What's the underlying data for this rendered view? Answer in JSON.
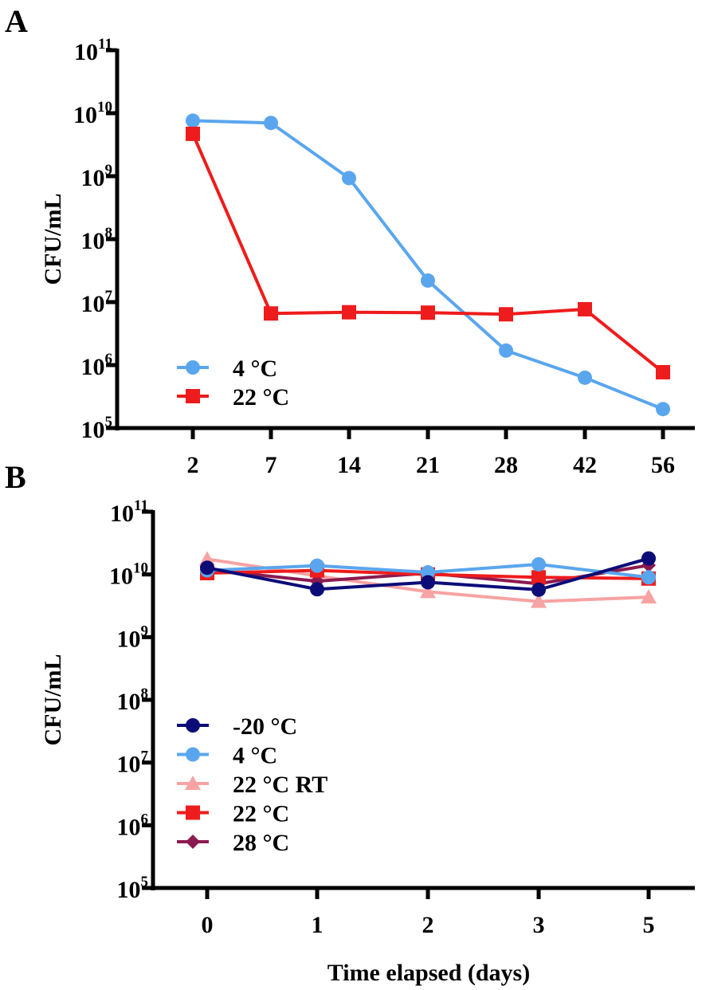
{
  "chart_data": [
    {
      "panel_label": "A",
      "type": "line",
      "ylabel": "CFU/mL",
      "xlabel": "",
      "yscale": "log",
      "ylim": [
        100000,
        100000000000
      ],
      "ytick_exponents": [
        "5",
        "6",
        "7",
        "8",
        "9",
        "10",
        "11"
      ],
      "ytick_base": "10",
      "categories": [
        "2",
        "7",
        "14",
        "21",
        "28",
        "42",
        "56"
      ],
      "legend_position": "bottom-left",
      "series": [
        {
          "name": "4 °C",
          "color": "#5aa6ee",
          "marker": "circle",
          "values": [
            7600000000.0,
            7000000000.0,
            930000000.0,
            22000000.0,
            1700000.0,
            630000.0,
            200000.0
          ]
        },
        {
          "name": "22 °C",
          "color": "#ee1c1c",
          "marker": "square",
          "values": [
            4700000000.0,
            6600000.0,
            6900000.0,
            6800000.0,
            6400000.0,
            7700000.0,
            770000.0
          ]
        }
      ]
    },
    {
      "panel_label": "B",
      "type": "line",
      "ylabel": "CFU/mL",
      "xlabel": "Time elapsed (days)",
      "yscale": "log",
      "ylim": [
        100000,
        100000000000
      ],
      "ytick_exponents": [
        "5",
        "6",
        "7",
        "8",
        "9",
        "10",
        "11"
      ],
      "ytick_base": "10",
      "categories": [
        "0",
        "1",
        "2",
        "3",
        "5"
      ],
      "legend_position": "center-left",
      "series": [
        {
          "name": "22 °C RT",
          "color": "#f7a3a3",
          "marker": "triangle",
          "values": [
            17600000000.0,
            9500000000.0,
            5300000000.0,
            3700000000.0,
            4350000000.0
          ]
        },
        {
          "name": "28 °C",
          "color": "#8b1a4f",
          "marker": "diamond",
          "values": [
            12000000000.0,
            7800000000.0,
            10500000000.0,
            7100000000.0,
            14000000000.0
          ]
        },
        {
          "name": "22 °C",
          "color": "#ee1c1c",
          "marker": "square",
          "values": [
            10500000000.0,
            11600000000.0,
            10000000000.0,
            9000000000.0,
            8600000000.0
          ]
        },
        {
          "name": "4 °C",
          "color": "#5aa6ee",
          "marker": "circle",
          "values": [
            11600000000.0,
            13800000000.0,
            10800000000.0,
            14500000000.0,
            9000000000.0
          ]
        },
        {
          "name": "-20 °C",
          "color": "#0c0c78",
          "marker": "circle",
          "values": [
            12800000000.0,
            5800000000.0,
            7500000000.0,
            5700000000.0,
            18000000000.0
          ]
        }
      ],
      "legend_order": [
        "-20 °C",
        "4 °C",
        "22 °C RT",
        "22 °C",
        "28 °C"
      ]
    }
  ]
}
